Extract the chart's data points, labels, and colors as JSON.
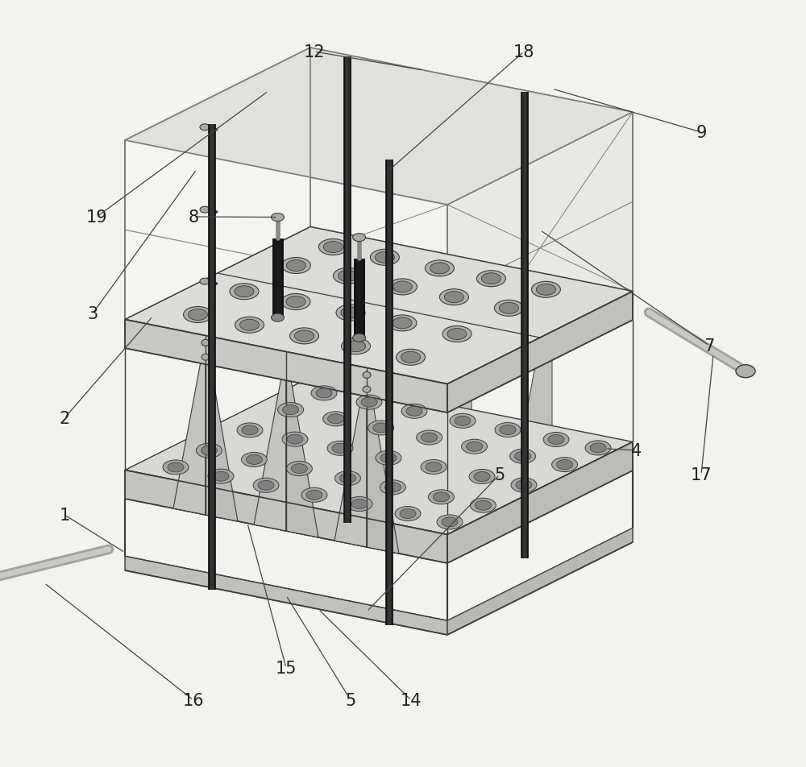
{
  "bg_color": "#f2f2ee",
  "line_color": "#7a7a7a",
  "dark_line": "#3a3a3a",
  "black": "#111111",
  "white": "#ffffff",
  "face_top": "#e8e8e4",
  "face_front": "#d8d8d4",
  "face_right": "#c8c8c4",
  "face_light": "#f0f0ec",
  "label_color": "#222222",
  "figsize": [
    10.0,
    9.53
  ],
  "dpi": 100
}
